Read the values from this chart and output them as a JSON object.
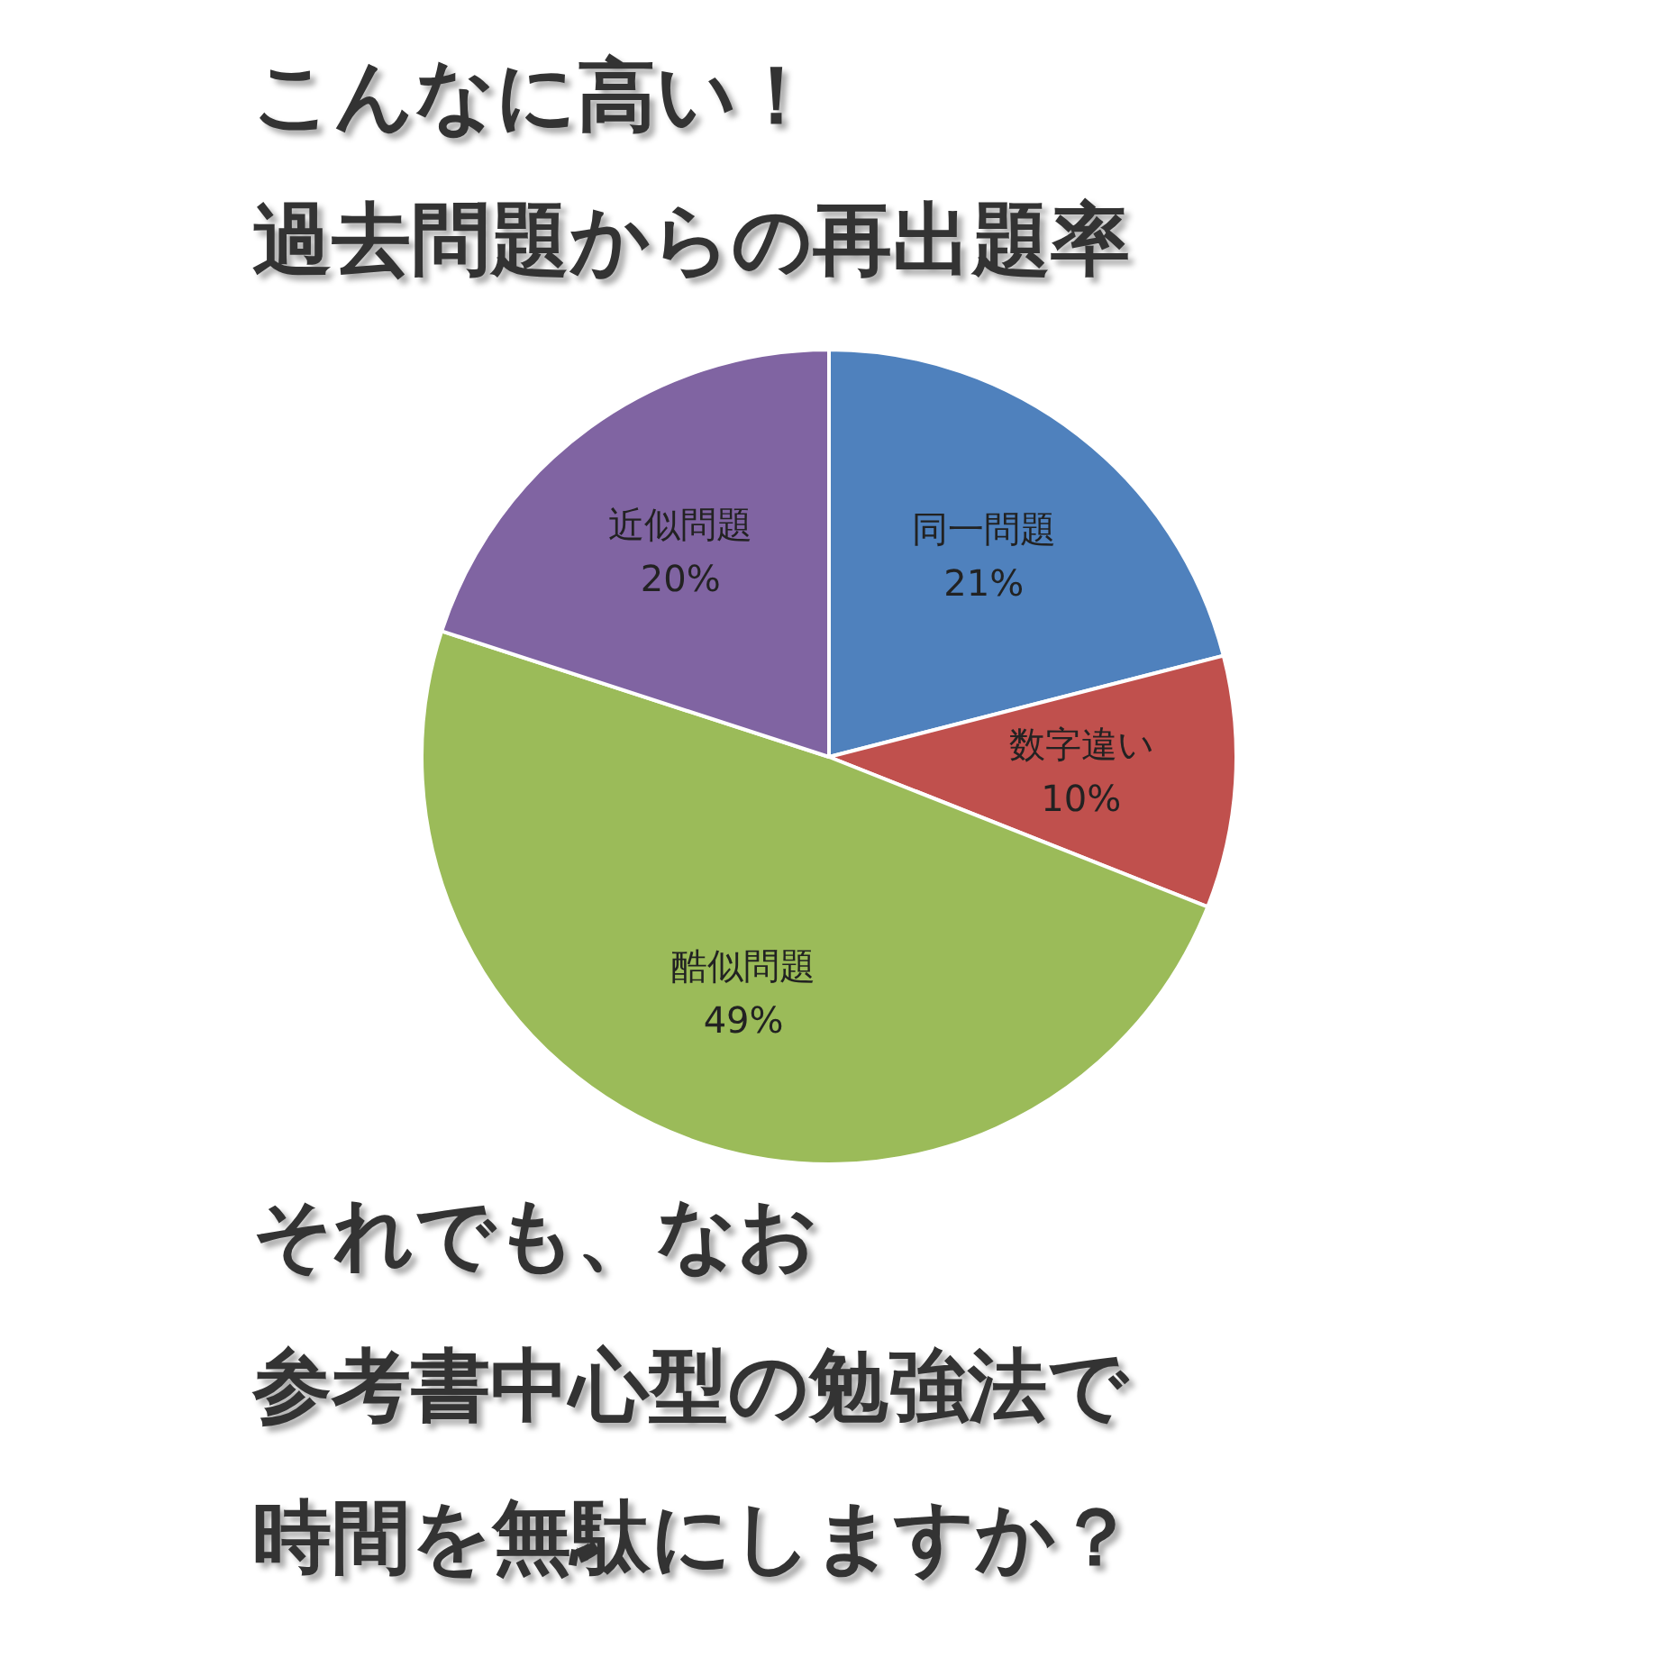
{
  "chart_data": {
    "type": "pie",
    "title": "こんなに高い！",
    "subtitle": "過去問題からの再出題率",
    "categories": [
      "同一問題",
      "数字違い",
      "酷似問題",
      "近似問題"
    ],
    "values": [
      21,
      10,
      49,
      20
    ],
    "value_labels": [
      "21%",
      "10%",
      "49%",
      "20%"
    ],
    "colors": [
      "#4f81bd",
      "#c0504d",
      "#9bbb59",
      "#8064a2"
    ],
    "annotations": [
      "それでも、なお",
      "参考書中心型の勉強法で",
      "時間を無駄にしますか？"
    ]
  }
}
